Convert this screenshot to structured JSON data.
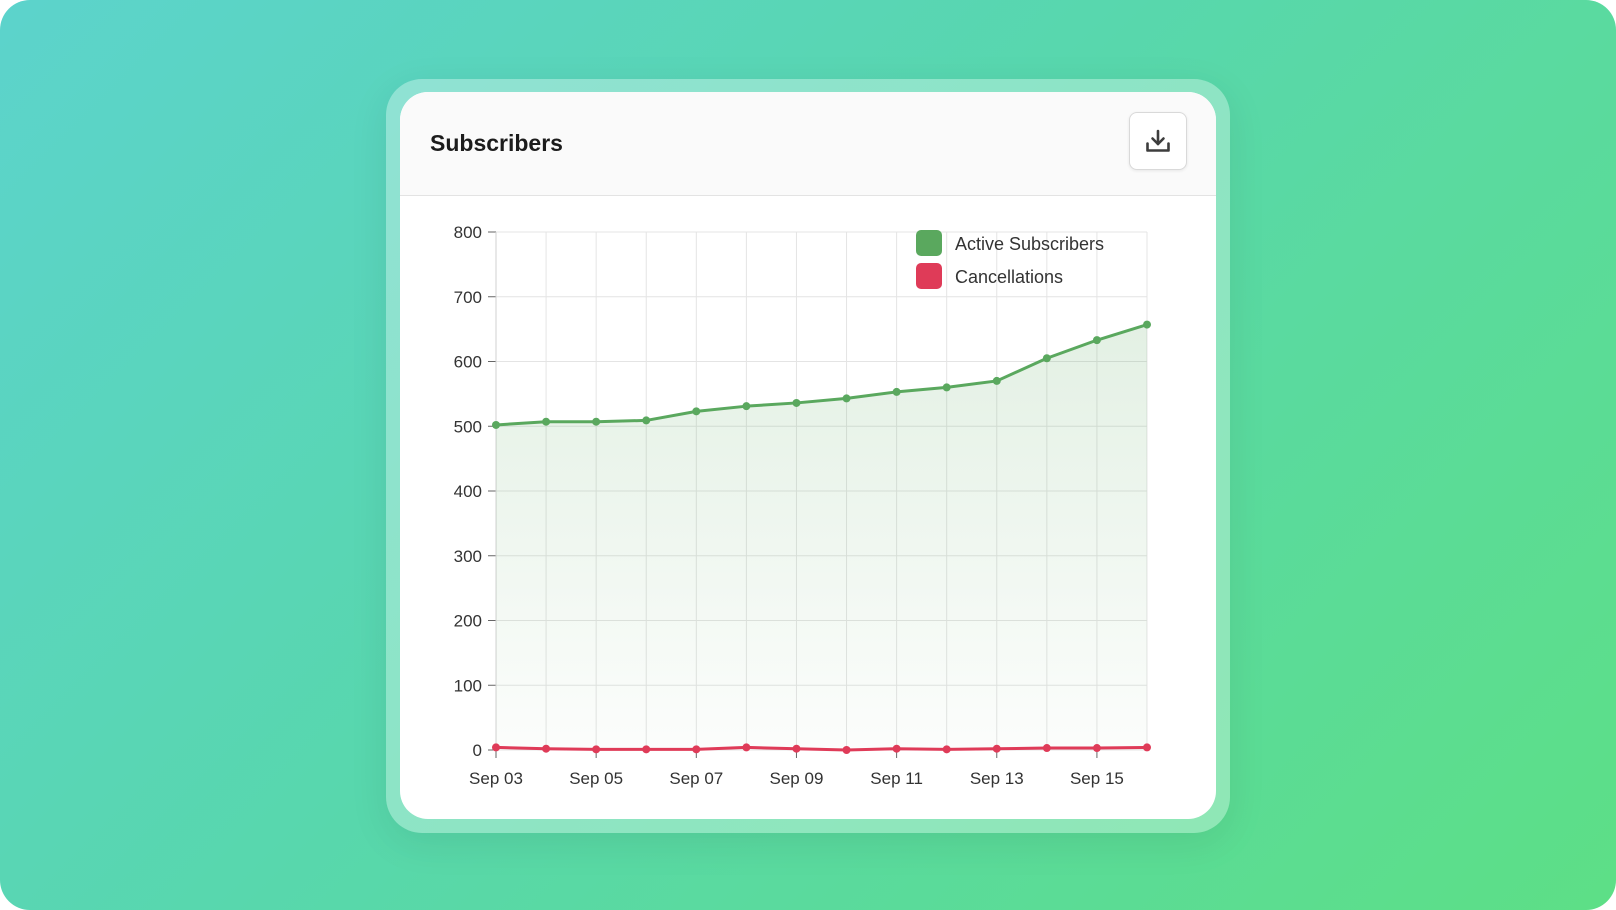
{
  "card": {
    "title": "Subscribers"
  },
  "toolbar": {
    "download_icon": "download-icon"
  },
  "colors": {
    "active": "#5aa85e",
    "cancellations": "#df3b58",
    "grid": "#e4e4e4"
  },
  "chart_data": {
    "type": "line",
    "x": [
      "Sep 03",
      "Sep 04",
      "Sep 05",
      "Sep 06",
      "Sep 07",
      "Sep 08",
      "Sep 09",
      "Sep 10",
      "Sep 11",
      "Sep 12",
      "Sep 13",
      "Sep 14",
      "Sep 15",
      "Sep 16"
    ],
    "x_tick_labels": [
      "Sep 03",
      "Sep 05",
      "Sep 07",
      "Sep 09",
      "Sep 11",
      "Sep 13",
      "Sep 15"
    ],
    "y_tick_labels": [
      "0",
      "100",
      "200",
      "300",
      "400",
      "500",
      "600",
      "700",
      "800"
    ],
    "ylim": [
      0,
      800
    ],
    "grid": true,
    "legend_position": "top-right",
    "series": [
      {
        "name": "Active Subscribers",
        "color": "#5aa85e",
        "filled": true,
        "values": [
          502,
          507,
          507,
          509,
          523,
          531,
          536,
          543,
          553,
          560,
          570,
          605,
          633,
          657
        ]
      },
      {
        "name": "Cancellations",
        "color": "#df3b58",
        "filled": false,
        "values": [
          4,
          2,
          1,
          1,
          1,
          4,
          2,
          0,
          2,
          1,
          2,
          3,
          3,
          4
        ]
      }
    ]
  }
}
